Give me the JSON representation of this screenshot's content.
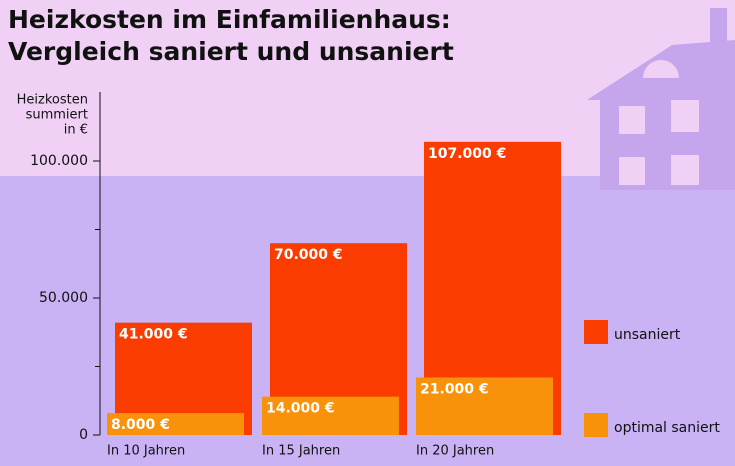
{
  "chart_data": {
    "type": "bar",
    "title": "Heizkosten im Einfamilienhaus: Vergleich saniert und unsaniert",
    "y_label": [
      "Heizkosten",
      "summiert",
      "in €"
    ],
    "categories": [
      "In 10 Jahren",
      "In 15 Jahren",
      "In 20 Jahren"
    ],
    "series": [
      {
        "name": "unsaniert",
        "color": "#fa3c00",
        "values": [
          41000,
          70000,
          107000
        ],
        "value_labels": [
          "41.000 €",
          "70.000 €",
          "107.000 €"
        ]
      },
      {
        "name": "optimal saniert",
        "color": "#f7920a",
        "values": [
          8000,
          14000,
          21000
        ],
        "value_labels": [
          "8.000 €",
          "14.000 €",
          "21.000 €"
        ]
      }
    ],
    "ylim": [
      0,
      125000
    ],
    "yticks": [
      0,
      {
        "value": 50000,
        "label": "50.000"
      },
      {
        "value": 100000,
        "label": "100.000"
      }
    ],
    "minor_yticks": [
      25000,
      75000
    ],
    "grid": false,
    "legend": "right"
  }
}
